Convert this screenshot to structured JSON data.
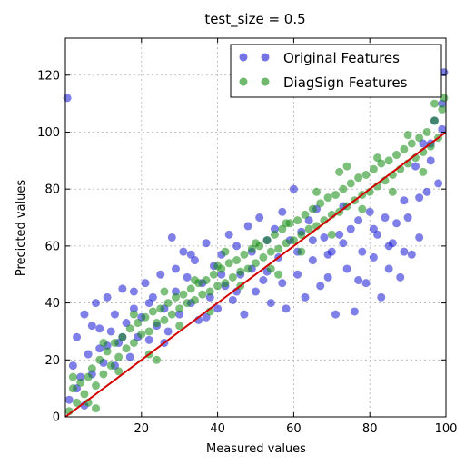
{
  "chart_data": {
    "type": "scatter",
    "title": "test_size = 0.5",
    "xlabel": "Measured values",
    "ylabel": "Precicted values",
    "xlim": [
      0,
      100
    ],
    "ylim": [
      0,
      133
    ],
    "xticks": [
      20,
      40,
      60,
      80,
      100
    ],
    "yticks": [
      0,
      20,
      40,
      60,
      80,
      100,
      120
    ],
    "grid": true,
    "legend_position": "top-right",
    "series": [
      {
        "name": "Original Features",
        "color": "#1515d6",
        "points": [
          [
            0.5,
            112
          ],
          [
            2,
            18
          ],
          [
            3,
            28
          ],
          [
            4,
            14
          ],
          [
            5,
            36
          ],
          [
            6,
            22
          ],
          [
            7,
            32
          ],
          [
            8,
            40
          ],
          [
            9,
            24
          ],
          [
            10,
            19
          ],
          [
            11,
            42
          ],
          [
            12,
            30
          ],
          [
            13,
            36
          ],
          [
            14,
            26
          ],
          [
            15,
            45
          ],
          [
            16,
            33
          ],
          [
            17,
            21
          ],
          [
            18,
            38
          ],
          [
            19,
            28
          ],
          [
            20,
            35
          ],
          [
            21,
            47
          ],
          [
            22,
            27
          ],
          [
            23,
            42
          ],
          [
            24,
            32
          ],
          [
            25,
            50
          ],
          [
            26,
            38
          ],
          [
            27,
            30
          ],
          [
            28,
            63
          ],
          [
            29,
            44
          ],
          [
            30,
            36
          ],
          [
            31,
            58
          ],
          [
            32,
            49
          ],
          [
            33,
            40
          ],
          [
            34,
            55
          ],
          [
            35,
            34
          ],
          [
            36,
            47
          ],
          [
            37,
            61
          ],
          [
            38,
            42
          ],
          [
            39,
            53
          ],
          [
            40,
            38
          ],
          [
            41,
            57
          ],
          [
            42,
            46
          ],
          [
            43,
            64
          ],
          [
            44,
            41
          ],
          [
            45,
            60
          ],
          [
            46,
            50
          ],
          [
            47,
            36
          ],
          [
            48,
            67
          ],
          [
            49,
            52
          ],
          [
            50,
            44
          ],
          [
            51,
            70
          ],
          [
            52,
            48
          ],
          [
            53,
            62
          ],
          [
            54,
            40
          ],
          [
            55,
            66
          ],
          [
            56,
            56
          ],
          [
            57,
            72
          ],
          [
            58,
            38
          ],
          [
            59,
            62
          ],
          [
            60,
            80
          ],
          [
            61,
            50
          ],
          [
            62,
            65
          ],
          [
            63,
            42
          ],
          [
            64,
            69
          ],
          [
            65,
            55
          ],
          [
            66,
            73
          ],
          [
            67,
            46
          ],
          [
            68,
            63
          ],
          [
            69,
            49
          ],
          [
            70,
            58
          ],
          [
            71,
            36
          ],
          [
            72,
            64
          ],
          [
            73,
            74
          ],
          [
            74,
            52
          ],
          [
            75,
            66
          ],
          [
            76,
            37
          ],
          [
            77,
            69
          ],
          [
            78,
            58
          ],
          [
            79,
            47
          ],
          [
            80,
            72
          ],
          [
            81,
            56
          ],
          [
            82,
            64
          ],
          [
            83,
            42
          ],
          [
            84,
            70
          ],
          [
            85,
            52
          ],
          [
            86,
            61
          ],
          [
            87,
            68
          ],
          [
            88,
            49
          ],
          [
            89,
            76
          ],
          [
            90,
            70
          ],
          [
            91,
            57
          ],
          [
            92,
            88
          ],
          [
            93,
            63
          ],
          [
            94,
            96
          ],
          [
            95,
            79
          ],
          [
            96,
            90
          ],
          [
            97,
            104
          ],
          [
            98,
            82
          ],
          [
            99,
            110
          ],
          [
            99.5,
            121
          ],
          [
            1,
            6
          ],
          [
            3,
            10
          ],
          [
            5,
            4
          ],
          [
            7,
            15
          ],
          [
            9,
            31
          ],
          [
            11,
            25
          ],
          [
            13,
            18
          ],
          [
            15,
            28
          ],
          [
            18,
            44
          ],
          [
            22,
            40
          ],
          [
            26,
            26
          ],
          [
            29,
            52
          ],
          [
            33,
            57
          ],
          [
            37,
            35
          ],
          [
            41,
            50
          ],
          [
            45,
            44
          ],
          [
            49,
            58
          ],
          [
            53,
            51
          ],
          [
            57,
            47
          ],
          [
            61,
            58
          ],
          [
            65,
            62
          ],
          [
            69,
            57
          ],
          [
            73,
            61
          ],
          [
            77,
            48
          ],
          [
            81,
            66
          ],
          [
            85,
            60
          ],
          [
            89,
            58
          ],
          [
            93,
            77
          ],
          [
            96,
            96
          ],
          [
            99,
            101
          ]
        ]
      },
      {
        "name": "DiagSign Features",
        "color": "#0f8a0f",
        "points": [
          [
            1,
            2
          ],
          [
            2,
            10
          ],
          [
            3,
            5
          ],
          [
            4,
            12
          ],
          [
            5,
            8
          ],
          [
            6,
            14
          ],
          [
            7,
            17
          ],
          [
            8,
            11
          ],
          [
            9,
            20
          ],
          [
            10,
            15
          ],
          [
            11,
            23
          ],
          [
            12,
            18
          ],
          [
            13,
            26
          ],
          [
            14,
            21
          ],
          [
            15,
            28
          ],
          [
            16,
            24
          ],
          [
            17,
            31
          ],
          [
            18,
            26
          ],
          [
            19,
            33
          ],
          [
            20,
            29
          ],
          [
            21,
            35
          ],
          [
            22,
            30
          ],
          [
            23,
            37
          ],
          [
            24,
            33
          ],
          [
            25,
            38
          ],
          [
            26,
            34
          ],
          [
            27,
            40
          ],
          [
            28,
            36
          ],
          [
            29,
            42
          ],
          [
            30,
            38
          ],
          [
            31,
            43
          ],
          [
            32,
            40
          ],
          [
            33,
            45
          ],
          [
            34,
            41
          ],
          [
            35,
            47
          ],
          [
            36,
            43
          ],
          [
            37,
            48
          ],
          [
            38,
            44
          ],
          [
            39,
            50
          ],
          [
            40,
            46
          ],
          [
            41,
            52
          ],
          [
            42,
            47
          ],
          [
            43,
            54
          ],
          [
            44,
            49
          ],
          [
            45,
            55
          ],
          [
            46,
            51
          ],
          [
            47,
            57
          ],
          [
            48,
            52
          ],
          [
            49,
            59
          ],
          [
            50,
            54
          ],
          [
            51,
            60
          ],
          [
            52,
            56
          ],
          [
            53,
            62
          ],
          [
            54,
            58
          ],
          [
            55,
            64
          ],
          [
            56,
            59
          ],
          [
            57,
            66
          ],
          [
            58,
            61
          ],
          [
            59,
            68
          ],
          [
            60,
            62
          ],
          [
            61,
            69
          ],
          [
            62,
            64
          ],
          [
            63,
            71
          ],
          [
            64,
            66
          ],
          [
            65,
            73
          ],
          [
            66,
            67
          ],
          [
            67,
            75
          ],
          [
            68,
            69
          ],
          [
            69,
            77
          ],
          [
            70,
            71
          ],
          [
            71,
            78
          ],
          [
            72,
            72
          ],
          [
            73,
            80
          ],
          [
            74,
            74
          ],
          [
            75,
            82
          ],
          [
            76,
            76
          ],
          [
            77,
            84
          ],
          [
            78,
            78
          ],
          [
            79,
            85
          ],
          [
            80,
            79
          ],
          [
            81,
            87
          ],
          [
            82,
            81
          ],
          [
            83,
            89
          ],
          [
            84,
            83
          ],
          [
            85,
            90
          ],
          [
            86,
            85
          ],
          [
            87,
            92
          ],
          [
            88,
            87
          ],
          [
            89,
            94
          ],
          [
            90,
            89
          ],
          [
            91,
            96
          ],
          [
            92,
            91
          ],
          [
            93,
            98
          ],
          [
            94,
            93
          ],
          [
            95,
            100
          ],
          [
            96,
            95
          ],
          [
            97,
            104
          ],
          [
            98,
            98
          ],
          [
            99,
            108
          ],
          [
            99.5,
            112
          ],
          [
            2,
            14
          ],
          [
            6,
            5
          ],
          [
            10,
            26
          ],
          [
            14,
            16
          ],
          [
            18,
            36
          ],
          [
            22,
            22
          ],
          [
            26,
            44
          ],
          [
            30,
            32
          ],
          [
            34,
            48
          ],
          [
            38,
            37
          ],
          [
            42,
            58
          ],
          [
            46,
            46
          ],
          [
            50,
            61
          ],
          [
            54,
            52
          ],
          [
            58,
            68
          ],
          [
            62,
            58
          ],
          [
            66,
            79
          ],
          [
            70,
            64
          ],
          [
            74,
            88
          ],
          [
            78,
            73
          ],
          [
            82,
            91
          ],
          [
            86,
            79
          ],
          [
            90,
            99
          ],
          [
            94,
            86
          ],
          [
            97,
            110
          ],
          [
            8,
            3
          ],
          [
            24,
            20
          ],
          [
            40,
            53
          ],
          [
            56,
            50
          ],
          [
            72,
            86
          ]
        ]
      },
      {
        "name": "",
        "color": "#d40000",
        "line": [
          [
            0,
            0
          ],
          [
            100,
            100
          ]
        ]
      }
    ]
  }
}
